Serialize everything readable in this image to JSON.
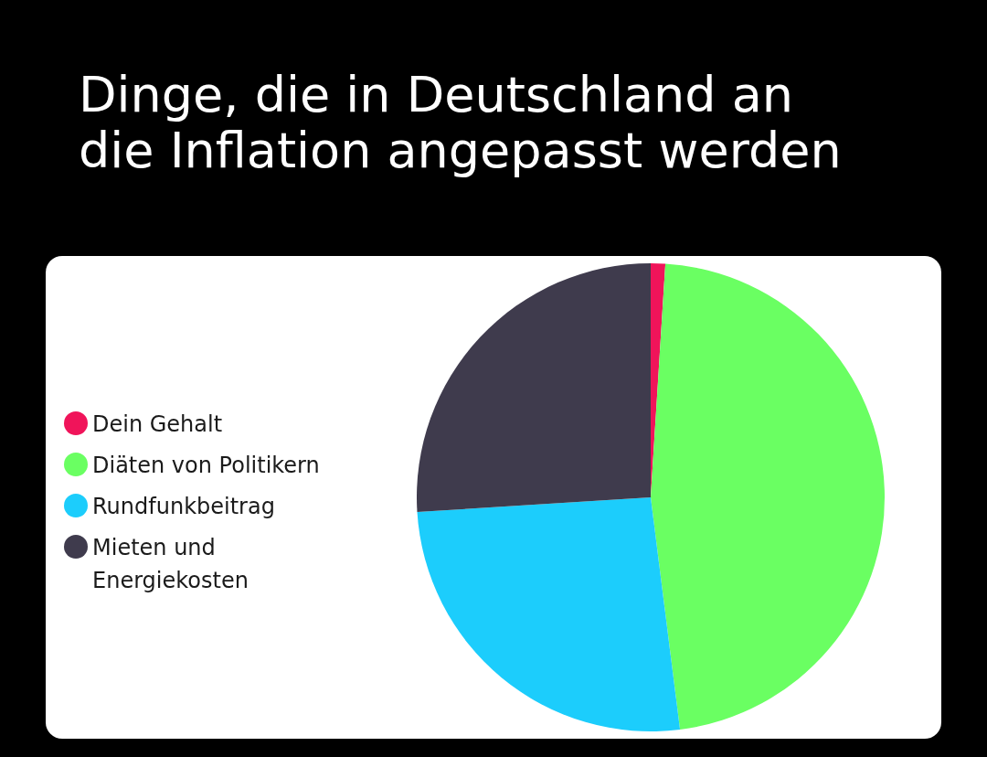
{
  "chart_data": {
    "type": "pie",
    "title": "Dinge, die in Deutschland an die Inflation angepasst werden",
    "categories": [
      "Dein Gehalt",
      "Diäten von Politikern",
      "Rundfunkbeitrag",
      "Mieten und Energiekosten"
    ],
    "values": [
      1,
      47,
      26,
      26
    ],
    "colors": [
      "#f0145a",
      "#6aff62",
      "#1ccdfc",
      "#3f3b4d"
    ],
    "legend": "left"
  }
}
